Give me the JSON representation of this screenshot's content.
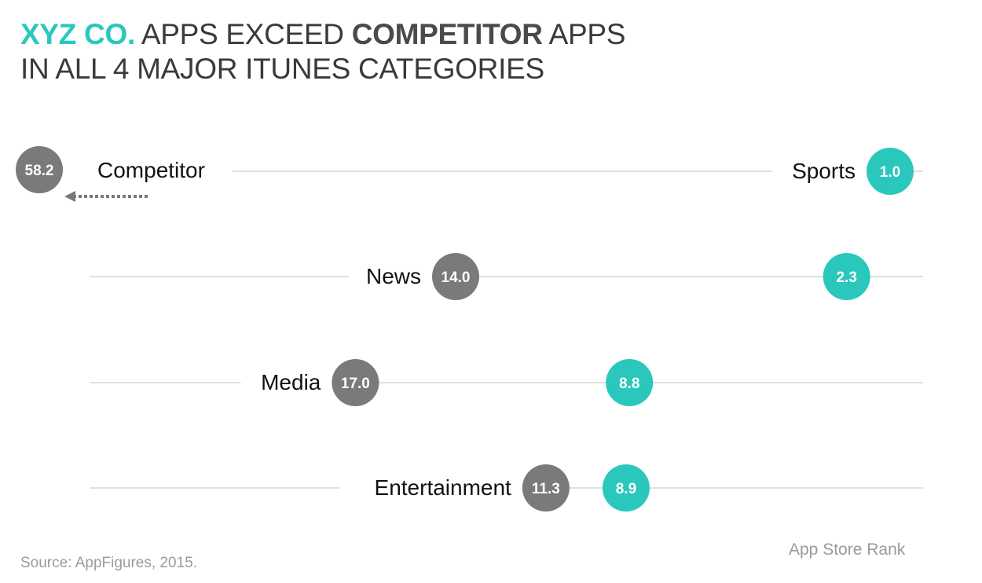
{
  "title": {
    "line1_brand": "XYZ CO.",
    "line1_mid": " APPS EXCEED ",
    "line1_comp": "COMPETITOR",
    "line1_end": " APPS",
    "line2": "IN ALL 4 MAJOR ITUNES CATEGORIES"
  },
  "source": "Source: AppFigures, 2015.",
  "colors": {
    "xyz": "#2ac8bc",
    "competitor": "#7a7a7a",
    "line": "#d6d6d6",
    "arrow": "#7a7a7a"
  },
  "chart_data": {
    "type": "dot",
    "xlabel": "App Store Rank",
    "x_reversed": true,
    "categories": [
      "Sports",
      "News",
      "Media",
      "Entertainment"
    ],
    "series": [
      {
        "name": "Competitor",
        "values": [
          58.2,
          14.0,
          17.0,
          11.3
        ],
        "labels": [
          "58.2",
          "14.0",
          "17.0",
          "11.3"
        ]
      },
      {
        "name": "",
        "values": [
          1.0,
          2.3,
          8.8,
          8.9
        ],
        "labels": [
          "1.0",
          "2.3",
          "8.8",
          "8.9"
        ]
      }
    ],
    "annotations": [
      {
        "category": "Sports",
        "series": "Competitor",
        "note": "off-scale",
        "label": "58.2"
      }
    ]
  }
}
